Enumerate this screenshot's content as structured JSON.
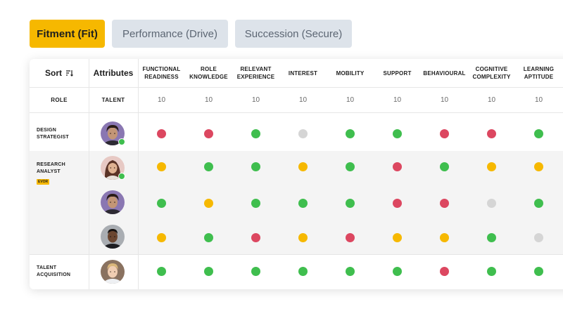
{
  "tabs": [
    {
      "label": "Fitment (Fit)",
      "active": true
    },
    {
      "label": "Performance (Drive)",
      "active": false
    },
    {
      "label": "Succession (Secure)",
      "active": false
    }
  ],
  "table": {
    "sort_label": "Sort",
    "attributes_label": "Attributes",
    "role_header": "ROLE",
    "talent_header": "TALENT",
    "columns": [
      {
        "label": "FUNCTIONAL READINESS",
        "weight": "10"
      },
      {
        "label": "ROLE KNOWLEDGE",
        "weight": "10"
      },
      {
        "label": "RELEVANT EXPERIENCE",
        "weight": "10"
      },
      {
        "label": "INTEREST",
        "weight": "10"
      },
      {
        "label": "MOBILITY",
        "weight": "10"
      },
      {
        "label": "SUPPORT",
        "weight": "10"
      },
      {
        "label": "BEHAVIOURAL",
        "weight": "10"
      },
      {
        "label": "COGNITIVE COMPLEXITY",
        "weight": "10"
      },
      {
        "label": "LEARNING APTITUDE",
        "weight": "10"
      }
    ],
    "roles": [
      {
        "label": "DESIGN STRATEGIST",
        "badge": ""
      },
      {
        "label": "RESEARCH ANALYST",
        "badge": "EVOR"
      },
      {
        "label": "TALENT ACQUISITION",
        "badge": ""
      }
    ],
    "rows": [
      {
        "role": 0,
        "avatar": "male-curly-purple",
        "online": true,
        "ratings": [
          "red",
          "red",
          "green",
          "grey",
          "green",
          "green",
          "red",
          "red",
          "green"
        ]
      },
      {
        "role": 1,
        "avatar": "female-pink",
        "online": true,
        "ratings": [
          "yellow",
          "green",
          "green",
          "yellow",
          "green",
          "red",
          "green",
          "yellow",
          "yellow"
        ]
      },
      {
        "role": 1,
        "avatar": "male-curly-purple",
        "online": false,
        "ratings": [
          "green",
          "yellow",
          "green",
          "green",
          "green",
          "red",
          "red",
          "grey",
          "green"
        ]
      },
      {
        "role": 1,
        "avatar": "male-dark-grey",
        "online": false,
        "ratings": [
          "yellow",
          "green",
          "red",
          "yellow",
          "red",
          "yellow",
          "yellow",
          "green",
          "grey"
        ]
      },
      {
        "role": 2,
        "avatar": "male-blond-brown",
        "online": false,
        "ratings": [
          "green",
          "green",
          "green",
          "green",
          "green",
          "green",
          "red",
          "green",
          "green"
        ]
      }
    ]
  },
  "colors": {
    "accent": "#f6b800",
    "tab_inactive": "#dde3ea",
    "green": "#3fbe4e",
    "red": "#dc4760",
    "yellow": "#f6b800",
    "grey": "#d5d5d5",
    "online": "#3fbe4e"
  }
}
